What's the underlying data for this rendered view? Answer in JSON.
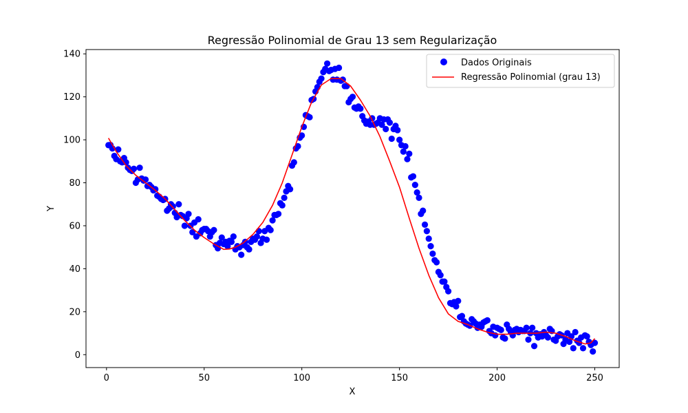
{
  "chart_data": {
    "type": "scatter",
    "title": "Regressão Polinomial de Grau 13 sem Regularização",
    "xlabel": "X",
    "ylabel": "Y",
    "xlim": [
      -10.5,
      262.5
    ],
    "ylim": [
      -6,
      142
    ],
    "x_ticks": [
      0,
      50,
      100,
      150,
      200,
      250
    ],
    "y_ticks": [
      0,
      20,
      40,
      60,
      80,
      100,
      120,
      140
    ],
    "grid": false,
    "legend_position": "top-right",
    "series": [
      {
        "name": "Dados Originais",
        "kind": "scatter",
        "color": "#0000ff",
        "x": [
          1,
          2,
          3,
          4,
          5,
          6,
          7,
          8,
          9,
          10,
          11,
          12,
          13,
          14,
          15,
          16,
          17,
          18,
          19,
          20,
          21,
          22,
          23,
          24,
          25,
          26,
          27,
          28,
          29,
          30,
          31,
          32,
          33,
          34,
          35,
          36,
          37,
          38,
          39,
          40,
          41,
          42,
          43,
          44,
          45,
          46,
          47,
          48,
          49,
          50,
          51,
          52,
          53,
          54,
          55,
          56,
          57,
          58,
          59,
          60,
          61,
          62,
          63,
          64,
          65,
          66,
          67,
          68,
          69,
          70,
          71,
          72,
          73,
          74,
          75,
          76,
          77,
          78,
          79,
          80,
          81,
          82,
          83,
          84,
          85,
          86,
          87,
          88,
          89,
          90,
          91,
          92,
          93,
          94,
          95,
          96,
          97,
          98,
          99,
          100,
          101,
          102,
          103,
          104,
          105,
          106,
          107,
          108,
          109,
          110,
          111,
          112,
          113,
          114,
          115,
          116,
          117,
          118,
          119,
          120,
          121,
          122,
          123,
          124,
          125,
          126,
          127,
          128,
          129,
          130,
          131,
          132,
          133,
          134,
          135,
          136,
          137,
          138,
          139,
          140,
          141,
          142,
          143,
          144,
          145,
          146,
          147,
          148,
          149,
          150,
          151,
          152,
          153,
          154,
          155,
          156,
          157,
          158,
          159,
          160,
          161,
          162,
          163,
          164,
          165,
          166,
          167,
          168,
          169,
          170,
          171,
          172,
          173,
          174,
          175,
          176,
          177,
          178,
          179,
          180,
          181,
          182,
          183,
          184,
          185,
          186,
          187,
          188,
          189,
          190,
          191,
          192,
          193,
          194,
          195,
          196,
          197,
          198,
          199,
          200,
          201,
          202,
          203,
          204,
          205,
          206,
          207,
          208,
          209,
          210,
          211,
          212,
          213,
          214,
          215,
          216,
          217,
          218,
          219,
          220,
          221,
          222,
          223,
          224,
          225,
          226,
          227,
          228,
          229,
          230,
          231,
          232,
          233,
          234,
          235,
          236,
          237,
          238,
          239,
          240,
          241,
          242,
          243,
          244,
          245,
          246,
          247,
          248,
          249,
          250
        ],
        "y": [
          97.5,
          97.6,
          96.0,
          92.5,
          91.0,
          95.5,
          90.0,
          89.5,
          91.5,
          89.5,
          87.0,
          86.0,
          85.5,
          86.5,
          80.0,
          81.5,
          87.0,
          82.0,
          81.0,
          81.5,
          78.5,
          79.0,
          78.0,
          76.5,
          77.0,
          74.0,
          73.5,
          72.5,
          72.0,
          72.5,
          67.0,
          68.0,
          70.0,
          69.0,
          66.0,
          64.0,
          70.0,
          65.0,
          64.5,
          60.0,
          63.5,
          65.5,
          60.0,
          57.0,
          61.5,
          55.0,
          63.0,
          56.5,
          58.0,
          58.5,
          58.5,
          57.5,
          55.0,
          57.0,
          58.0,
          51.0,
          49.5,
          52.0,
          54.5,
          51.5,
          52.5,
          50.5,
          53.0,
          52.5,
          55.0,
          49.0,
          50.5,
          50.0,
          46.5,
          51.0,
          52.5,
          50.0,
          49.0,
          52.5,
          54.0,
          53.5,
          55.0,
          57.5,
          52.0,
          54.0,
          57.5,
          53.5,
          59.0,
          58.0,
          62.5,
          65.0,
          65.0,
          65.5,
          70.5,
          69.5,
          73.0,
          76.0,
          78.5,
          77.0,
          88.0,
          89.5,
          96.0,
          97.0,
          101.0,
          102.0,
          106.0,
          111.5,
          111.0,
          110.5,
          118.5,
          119.0,
          122.5,
          124.5,
          127.0,
          128.5,
          131.5,
          133.0,
          135.5,
          132.0,
          132.5,
          128.0,
          133.0,
          128.0,
          133.5,
          127.5,
          128.0,
          125.0,
          125.0,
          117.5,
          119.0,
          120.0,
          115.0,
          114.5,
          115.5,
          114.5,
          111.0,
          109.0,
          107.5,
          108.5,
          107.0,
          110.0,
          107.0,
          107.5,
          108.0,
          110.0,
          107.0,
          109.5,
          105.0,
          109.5,
          108.0,
          100.5,
          105.0,
          106.5,
          104.5,
          100.0,
          97.5,
          94.5,
          97.0,
          91.0,
          93.5,
          82.5,
          83.0,
          79.0,
          75.5,
          73.0,
          65.5,
          67.0,
          60.5,
          57.5,
          54.0,
          50.5,
          47.0,
          44.0,
          43.0,
          38.5,
          37.0,
          34.0,
          34.0,
          31.5,
          29.5,
          24.0,
          23.5,
          24.5,
          22.5,
          25.0,
          17.5,
          18.0,
          15.5,
          14.5,
          14.0,
          13.5,
          16.5,
          15.5,
          14.5,
          12.5,
          14.0,
          13.0,
          15.0,
          15.5,
          16.0,
          11.0,
          10.0,
          13.0,
          9.0,
          12.5,
          12.0,
          11.5,
          8.0,
          7.5,
          14.0,
          12.0,
          10.5,
          9.0,
          11.5,
          12.0,
          10.5,
          11.5,
          11.0,
          11.0,
          12.5,
          7.0,
          10.0,
          12.5,
          4.0,
          10.0,
          8.0,
          9.5,
          8.5,
          10.5,
          9.0,
          8.0,
          12.0,
          11.0,
          7.0,
          6.5,
          8.5,
          9.5,
          9.0,
          5.0,
          7.0,
          10.0,
          6.0,
          8.5,
          3.0,
          10.5,
          6.5,
          5.5,
          8.0,
          3.0,
          9.0,
          8.5,
          6.0,
          4.5,
          1.5,
          5.5
        ]
      },
      {
        "name": "Regressão Polinomial (grau 13)",
        "kind": "line",
        "color": "#ff0000",
        "x": [
          1,
          5,
          10,
          15,
          20,
          25,
          30,
          35,
          40,
          45,
          50,
          55,
          60,
          63,
          66,
          70,
          75,
          80,
          85,
          90,
          95,
          100,
          105,
          110,
          115,
          120,
          125,
          130,
          135,
          140,
          145,
          150,
          155,
          160,
          165,
          170,
          175,
          180,
          185,
          190,
          195,
          200,
          205,
          210,
          215,
          220,
          225,
          230,
          235,
          240,
          245,
          248,
          250
        ],
        "y": [
          100.8,
          94.5,
          88.0,
          83.5,
          80.0,
          76.5,
          72.5,
          67.5,
          62.5,
          58.0,
          54.5,
          51.5,
          49.0,
          49.2,
          50.0,
          52.0,
          56.0,
          61.5,
          69.5,
          80.0,
          93.0,
          106.0,
          117.5,
          125.5,
          128.5,
          128.5,
          125.0,
          118.5,
          111.0,
          101.5,
          90.0,
          78.0,
          63.5,
          49.5,
          37.0,
          26.5,
          19.0,
          15.5,
          14.0,
          12.0,
          10.5,
          9.5,
          9.5,
          10.0,
          10.0,
          10.0,
          10.5,
          10.0,
          8.5,
          6.5,
          5.0,
          5.5,
          7.5
        ]
      }
    ]
  }
}
